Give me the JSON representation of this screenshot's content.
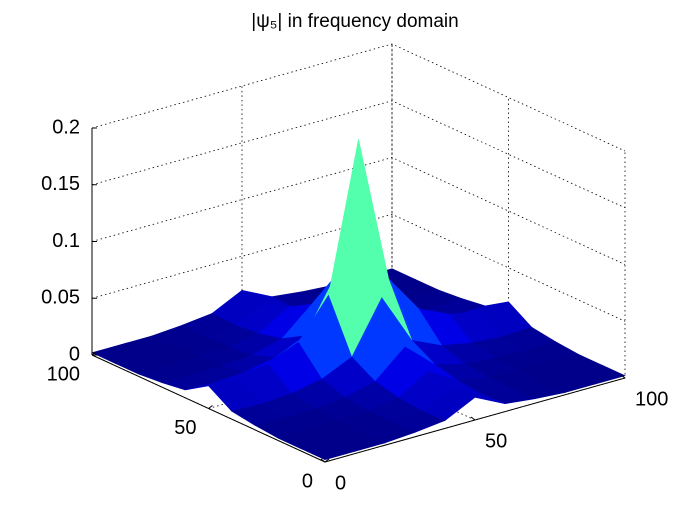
{
  "chart_data": {
    "type": "surface",
    "title": "|ψ₅|  in frequency domain",
    "x": [
      0,
      10,
      20,
      30,
      40,
      50,
      60,
      70,
      80,
      90,
      100
    ],
    "y": [
      0,
      10,
      20,
      30,
      40,
      50,
      60,
      70,
      80,
      90,
      100
    ],
    "z": [
      [
        0.002,
        0.002,
        0.002,
        0.004,
        0.007,
        0.02,
        0.007,
        0.004,
        0.002,
        0.002,
        0.002
      ],
      [
        0.002,
        0.002,
        0.002,
        0.003,
        0.006,
        0.018,
        0.006,
        0.003,
        0.002,
        0.002,
        0.002
      ],
      [
        0.002,
        0.002,
        0.003,
        0.004,
        0.008,
        0.024,
        0.008,
        0.004,
        0.003,
        0.002,
        0.002
      ],
      [
        0.004,
        0.003,
        0.004,
        0.006,
        0.013,
        0.036,
        0.013,
        0.006,
        0.004,
        0.003,
        0.004
      ],
      [
        0.007,
        0.006,
        0.008,
        0.013,
        0.025,
        0.07,
        0.025,
        0.013,
        0.008,
        0.006,
        0.007
      ],
      [
        0.02,
        0.018,
        0.024,
        0.036,
        0.07,
        0.2,
        0.07,
        0.036,
        0.024,
        0.018,
        0.02
      ],
      [
        0.007,
        0.006,
        0.008,
        0.013,
        0.025,
        0.07,
        0.025,
        0.013,
        0.008,
        0.006,
        0.007
      ],
      [
        0.004,
        0.003,
        0.004,
        0.006,
        0.013,
        0.036,
        0.013,
        0.006,
        0.004,
        0.003,
        0.004
      ],
      [
        0.002,
        0.002,
        0.003,
        0.004,
        0.008,
        0.024,
        0.008,
        0.004,
        0.003,
        0.002,
        0.002
      ],
      [
        0.002,
        0.002,
        0.002,
        0.003,
        0.006,
        0.018,
        0.006,
        0.003,
        0.002,
        0.002,
        0.002
      ],
      [
        0.002,
        0.002,
        0.002,
        0.004,
        0.007,
        0.02,
        0.007,
        0.004,
        0.002,
        0.002,
        0.002
      ]
    ],
    "colormap": "jet",
    "xlim": [
      0,
      100
    ],
    "ylim": [
      0,
      100
    ],
    "zlim": [
      0,
      0.2
    ],
    "xticks": [
      0,
      50,
      100
    ],
    "yticks": [
      0,
      50,
      100
    ],
    "zticks": [
      0,
      0.05,
      0.1,
      0.15,
      0.2
    ],
    "grid": true
  }
}
